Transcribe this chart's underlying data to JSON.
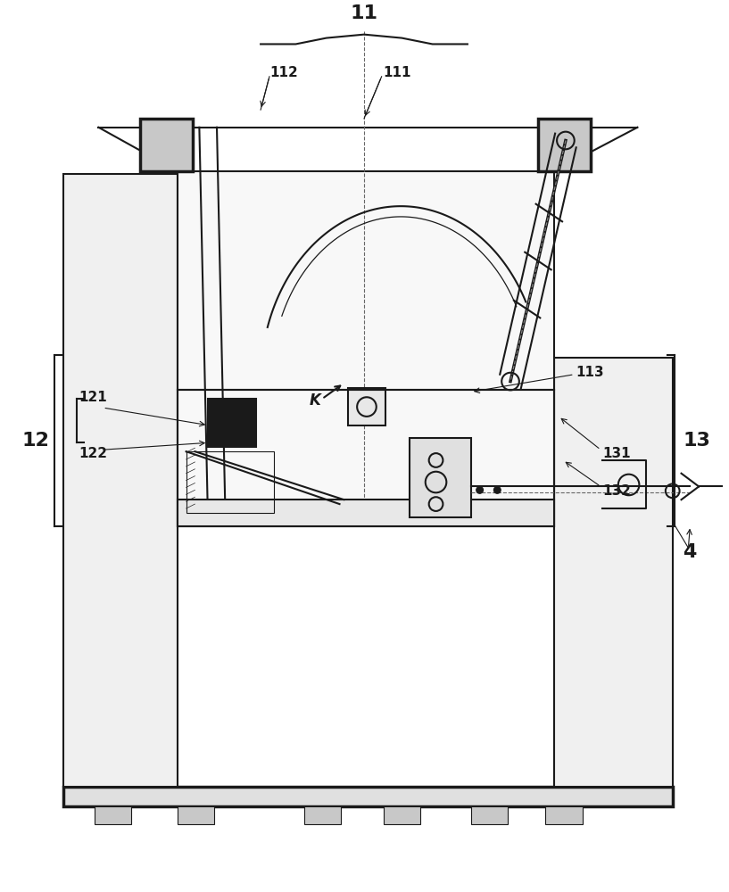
{
  "bg_color": "#ffffff",
  "line_color": "#1a1a1a",
  "line_width": 1.5,
  "thin_line": 0.8,
  "thick_line": 2.5
}
